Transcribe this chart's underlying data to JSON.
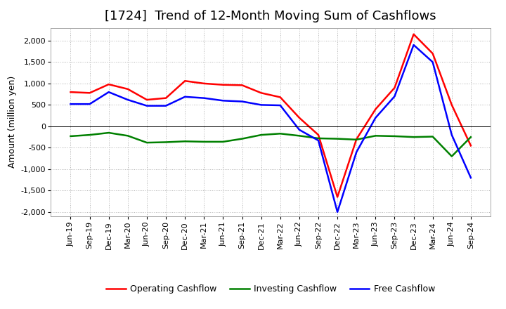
{
  "title": "[1724]  Trend of 12-Month Moving Sum of Cashflows",
  "ylabel": "Amount (million yen)",
  "xlabels": [
    "Jun-19",
    "Sep-19",
    "Dec-19",
    "Mar-20",
    "Jun-20",
    "Sep-20",
    "Dec-20",
    "Mar-21",
    "Jun-21",
    "Sep-21",
    "Dec-21",
    "Mar-22",
    "Jun-22",
    "Sep-22",
    "Dec-22",
    "Mar-23",
    "Jun-23",
    "Sep-23",
    "Dec-23",
    "Mar-24",
    "Jun-24",
    "Sep-24"
  ],
  "operating": [
    800,
    780,
    980,
    870,
    620,
    660,
    1060,
    1000,
    970,
    960,
    780,
    680,
    200,
    -200,
    -1650,
    -300,
    400,
    900,
    2150,
    1700,
    500,
    -450
  ],
  "investing": [
    -230,
    -200,
    -150,
    -220,
    -380,
    -370,
    -350,
    -360,
    -360,
    -290,
    -200,
    -170,
    -220,
    -280,
    -290,
    -310,
    -220,
    -230,
    -250,
    -240,
    -700,
    -250
  ],
  "free": [
    520,
    520,
    800,
    620,
    480,
    480,
    690,
    660,
    600,
    580,
    500,
    490,
    -80,
    -330,
    -2000,
    -600,
    200,
    700,
    1900,
    1500,
    -200,
    -1200
  ],
  "ylim": [
    -2100,
    2300
  ],
  "yticks": [
    -2000,
    -1500,
    -1000,
    -500,
    0,
    500,
    1000,
    1500,
    2000
  ],
  "operating_color": "#ff0000",
  "investing_color": "#008000",
  "free_color": "#0000ff",
  "line_width": 1.8,
  "bg_color": "#ffffff",
  "plot_bg_color": "#ffffff",
  "grid_color": "#aaaaaa",
  "title_fontsize": 13,
  "axis_label_fontsize": 9,
  "tick_fontsize": 8,
  "legend_fontsize": 9
}
